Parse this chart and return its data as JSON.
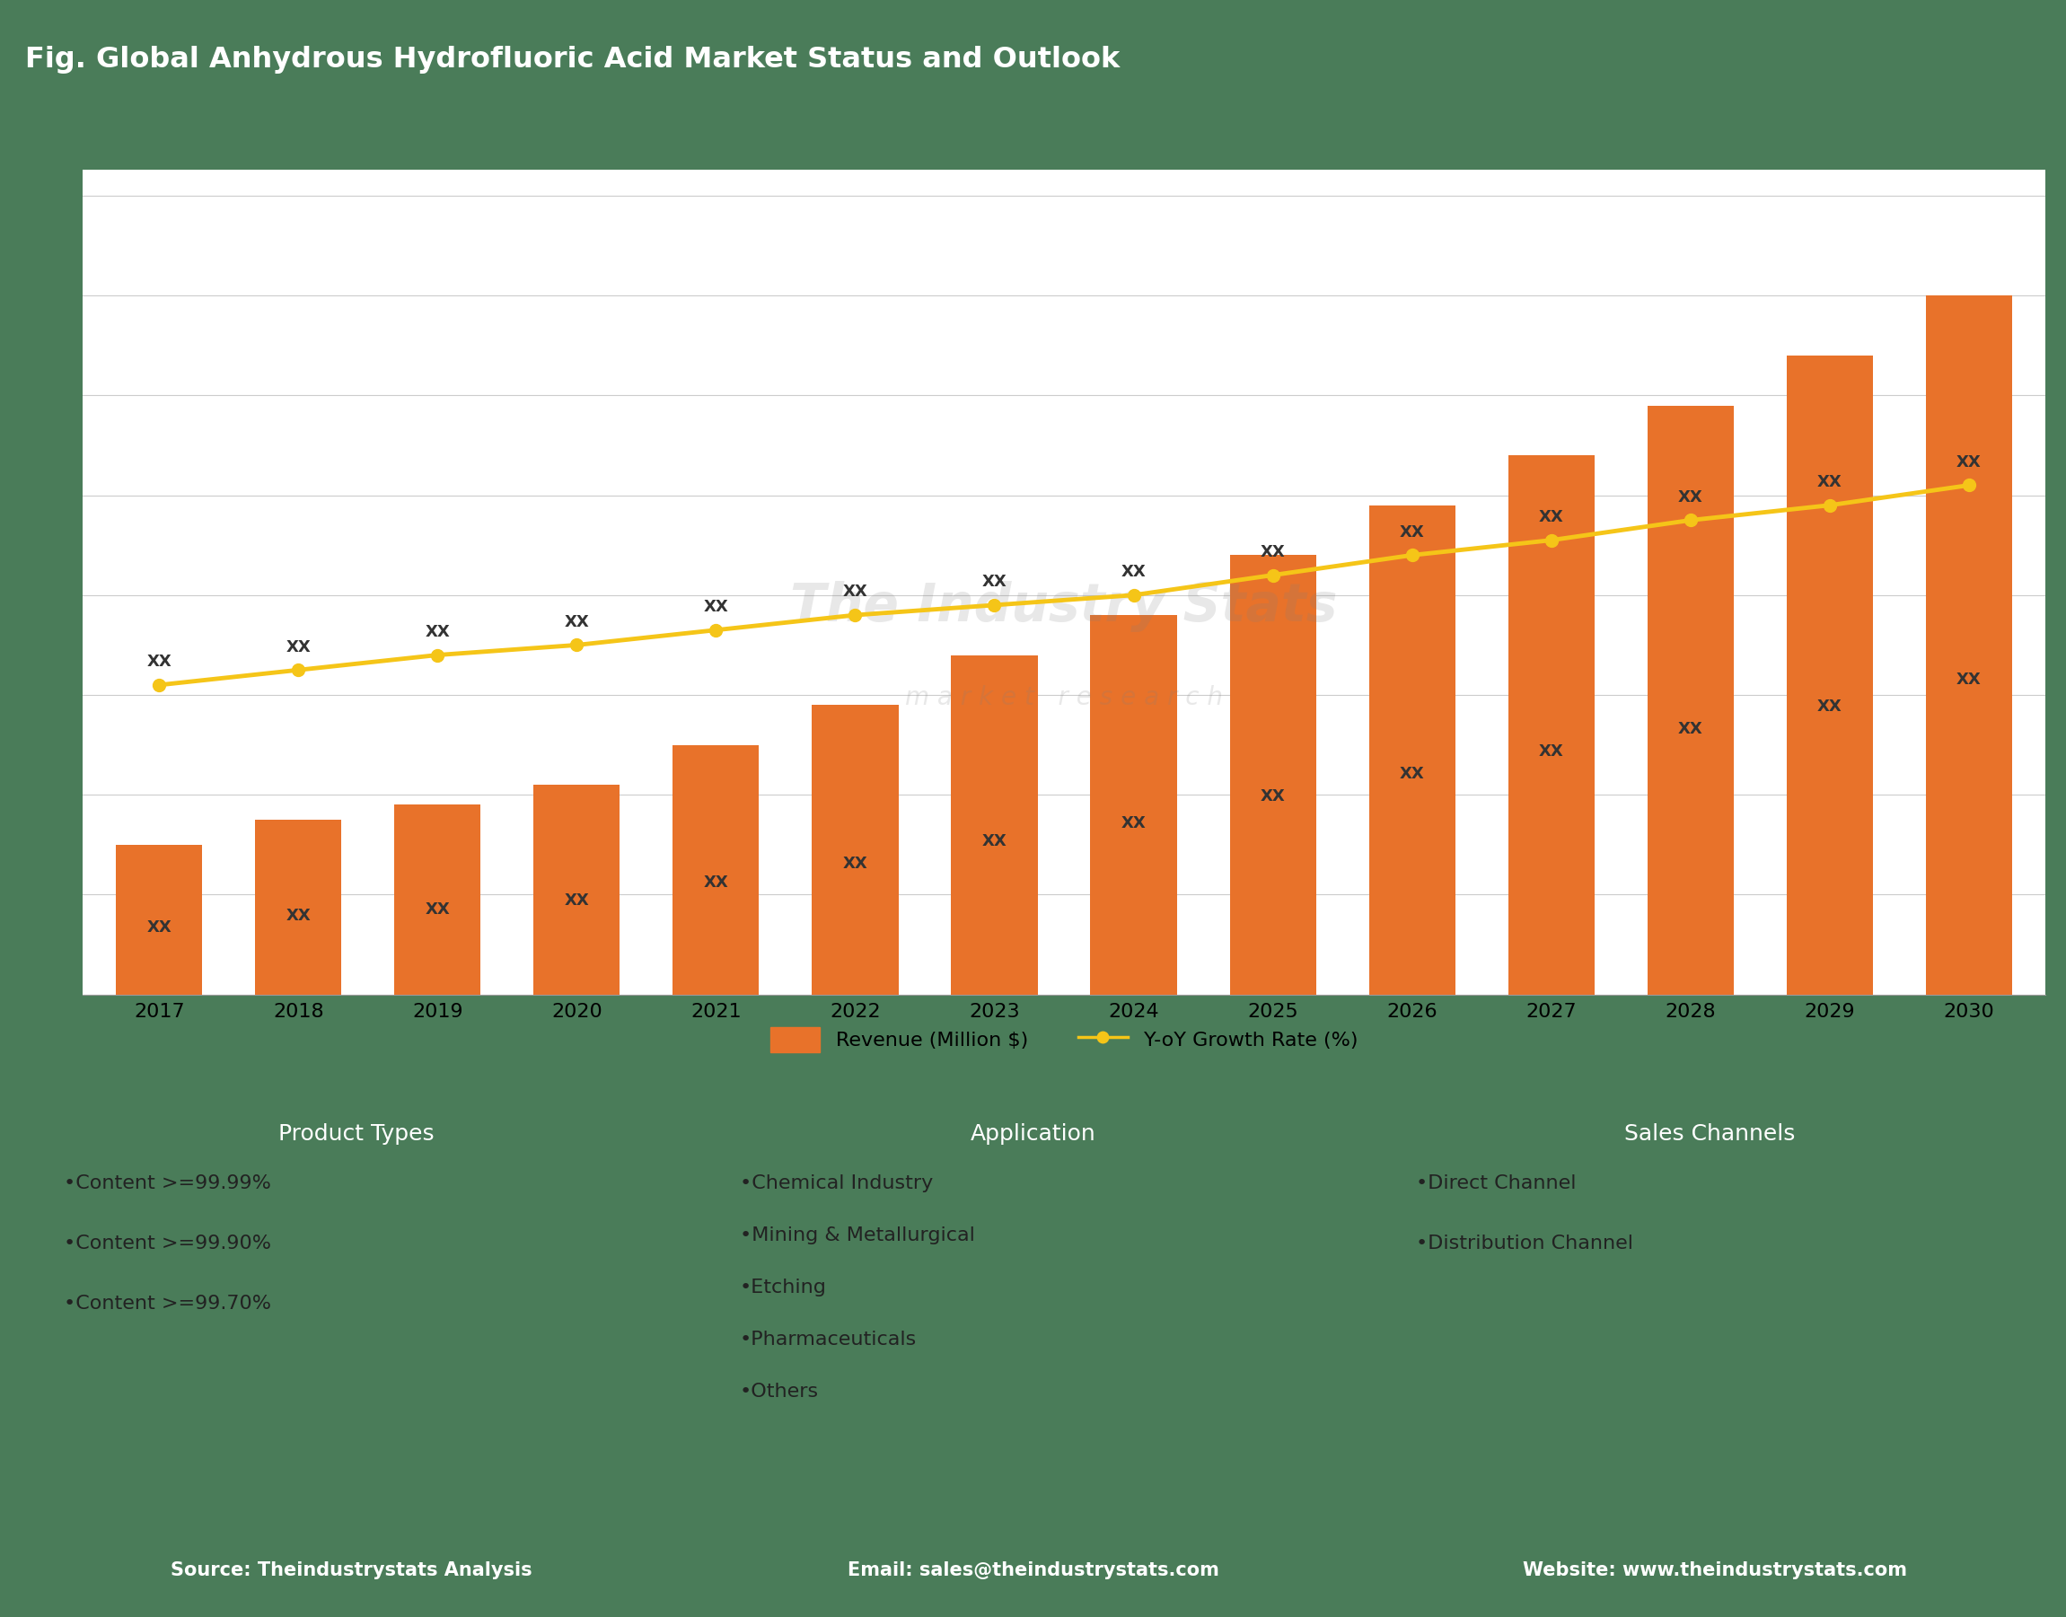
{
  "title": "Fig. Global Anhydrous Hydrofluoric Acid Market Status and Outlook",
  "header_bg": "#4472C4",
  "header_text_color": "#FFFFFF",
  "chart_bg": "#FFFFFF",
  "chart_outer_bg": "#FFFFFF",
  "years": [
    2017,
    2018,
    2019,
    2020,
    2021,
    2022,
    2023,
    2024,
    2025,
    2026,
    2027,
    2028,
    2029,
    2030
  ],
  "bar_values": [
    30,
    35,
    38,
    42,
    50,
    58,
    68,
    76,
    88,
    98,
    108,
    118,
    128,
    140
  ],
  "line_values": [
    62,
    65,
    68,
    70,
    73,
    76,
    78,
    80,
    84,
    88,
    91,
    95,
    98,
    102
  ],
  "bar_color": "#E8722A",
  "line_color": "#F5C518",
  "line_marker": "o",
  "bar_label_text": "XX",
  "line_label_text": "XX",
  "bar_legend_label": "Revenue (Million $)",
  "line_legend_label": "Y-oY Growth Rate (%)",
  "bar_label_color": "#333333",
  "watermark_text1": "The Industry Stats",
  "watermark_text2": "m a r k e t   r e s e a r c h",
  "grid_color": "#CCCCCC",
  "section_bg": "#4A7C59",
  "box_bg": "#F5D5C8",
  "box_header_bg": "#E8722A",
  "box_header_text": "#FFFFFF",
  "footer_bg": "#4472C4",
  "footer_text_color": "#FFFFFF",
  "footer_items": [
    "Source: Theindustrystats Analysis",
    "Email: sales@theindustrystats.com",
    "Website: www.theindustrystats.com"
  ],
  "product_types_title": "Product Types",
  "product_types_items": [
    "•Content >=99.99%",
    "•Content >=99.90%",
    "•Content >=99.70%"
  ],
  "application_title": "Application",
  "application_items": [
    "•Chemical Industry",
    "•Mining & Metallurgical",
    "•Etching",
    "•Pharmaceuticals",
    "•Others"
  ],
  "sales_channels_title": "Sales Channels",
  "sales_channels_items": [
    "•Direct Channel",
    "•Distribution Channel"
  ]
}
